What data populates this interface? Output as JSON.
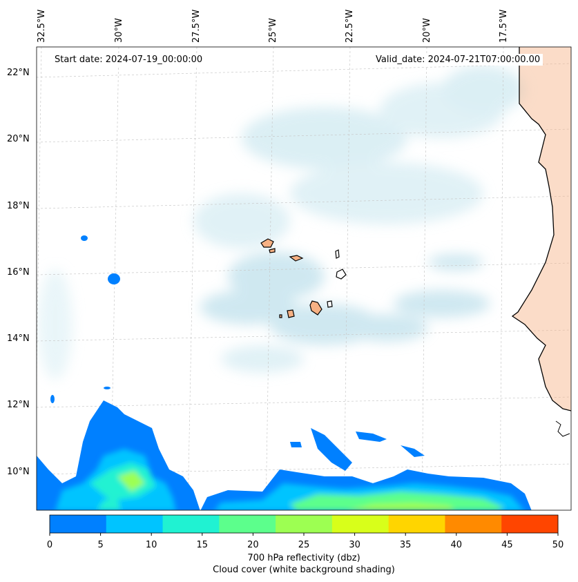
{
  "start_date": "Start date: 2024-07-19_00:00:00",
  "valid_date": "Valid_date: 2024-07-21T07:00:00.00",
  "lon_labels": [
    "32.5°W",
    "30°W",
    "27.5°W",
    "25°W",
    "22.5°W",
    "20°W",
    "17.5°W"
  ],
  "lat_labels": [
    "22°N",
    "20°N",
    "18°N",
    "16°N",
    "14°N",
    "12°N",
    "10°N"
  ],
  "colorbar": {
    "ticks": [
      "0",
      "5",
      "10",
      "15",
      "20",
      "25",
      "30",
      "35",
      "40",
      "45",
      "50"
    ],
    "colors": [
      "#0080ff",
      "#00c4ff",
      "#20f2d2",
      "#5cff8c",
      "#9dff52",
      "#d8ff1a",
      "#ffd500",
      "#ff8a00",
      "#ff4500"
    ],
    "title": "700 hPa reflectivity (dbz)",
    "subtitle": "Cloud cover (white background shading)"
  },
  "colors": {
    "land": "#f6b184",
    "cloud": "#b9dfea",
    "coast": "#000000"
  }
}
